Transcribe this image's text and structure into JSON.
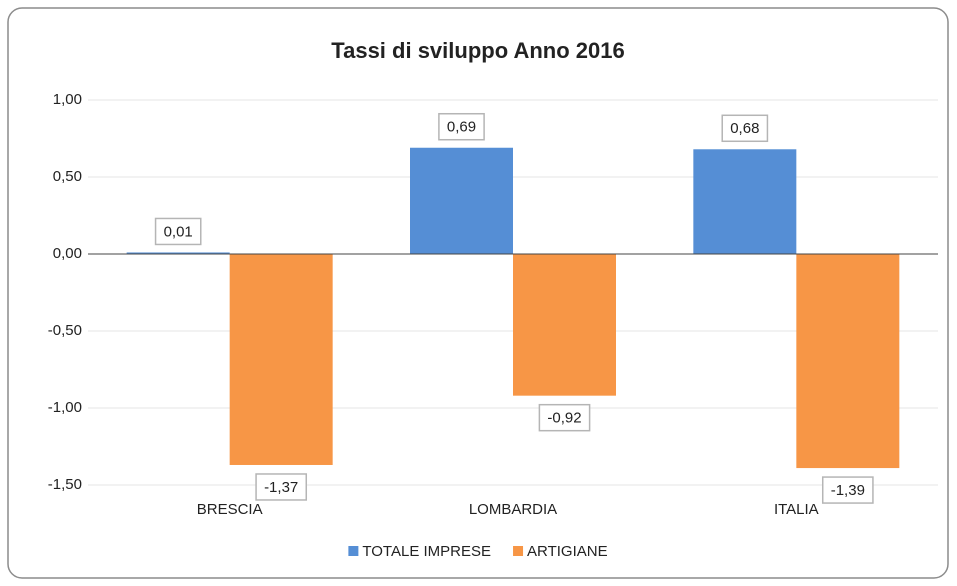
{
  "chart_data": {
    "type": "bar",
    "title": "Tassi di sviluppo Anno 2016",
    "categories": [
      "BRESCIA",
      "LOMBARDIA",
      "ITALIA"
    ],
    "series": [
      {
        "name": "TOTALE IMPRESE",
        "color": "#558ed5",
        "values": [
          0.01,
          0.69,
          0.68
        ],
        "value_labels": [
          "0,01",
          "0,69",
          "0,68"
        ]
      },
      {
        "name": "ARTIGIANE",
        "color": "#f79646",
        "values": [
          -1.37,
          -0.92,
          -1.39
        ],
        "value_labels": [
          "-1,37",
          "-0,92",
          "-1,39"
        ]
      }
    ],
    "ylim": [
      -1.5,
      1.0
    ],
    "yticks": [
      {
        "value": -1.5,
        "label": "-1,50"
      },
      {
        "value": -1.0,
        "label": "-1,00"
      },
      {
        "value": -0.5,
        "label": "-0,50"
      },
      {
        "value": 0,
        "label": "0,00"
      },
      {
        "value": 0.5,
        "label": "0,50"
      },
      {
        "value": 1.0,
        "label": "1,00"
      }
    ],
    "grid": true,
    "legend": "bottom"
  }
}
